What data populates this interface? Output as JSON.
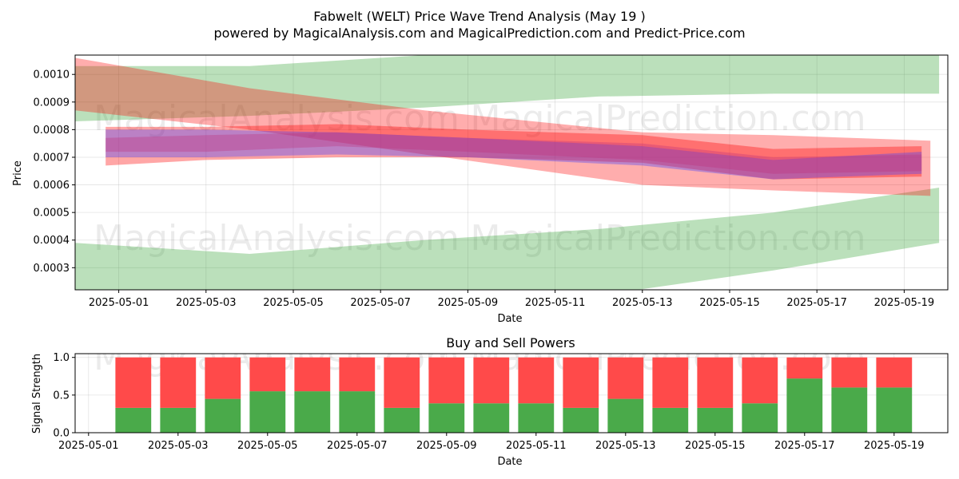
{
  "chart_data": [
    {
      "type": "area",
      "title": "Fabwelt (WELT) Price Wave Trend Analysis (May 19 )",
      "subtitle": "powered by MagicalAnalysis.com and MagicalPrediction.com and Predict-Price.com",
      "xlabel": "Date",
      "ylabel": "Price",
      "xlim": [
        "2025-04-30",
        "2025-05-20"
      ],
      "ylim": [
        0.00022,
        0.00107
      ],
      "x_ticks": [
        "2025-05-01",
        "2025-05-03",
        "2025-05-05",
        "2025-05-07",
        "2025-05-09",
        "2025-05-11",
        "2025-05-13",
        "2025-05-15",
        "2025-05-17",
        "2025-05-19"
      ],
      "y_ticks": [
        "0.0003",
        "0.0004",
        "0.0005",
        "0.0006",
        "0.0007",
        "0.0008",
        "0.0009",
        "0.0010"
      ],
      "grid": true,
      "bands": [
        {
          "color": "#2ca02c",
          "x": [
            "2025-04-30",
            "2025-05-04",
            "2025-05-08",
            "2025-05-12",
            "2025-05-16",
            "2025-05-19.8"
          ],
          "upper": [
            0.00103,
            0.00103,
            0.00107,
            0.00107,
            0.00107,
            0.00107
          ],
          "lower": [
            0.00083,
            0.00085,
            0.00088,
            0.00092,
            0.00093,
            0.00093
          ]
        },
        {
          "color": "#2ca02c",
          "x": [
            "2025-04-30",
            "2025-05-04",
            "2025-05-08",
            "2025-05-12",
            "2025-05-16",
            "2025-05-19.8"
          ],
          "upper": [
            0.00039,
            0.00035,
            0.0004,
            0.00044,
            0.0005,
            0.00059
          ],
          "lower": [
            0.00022,
            0.00017,
            0.00017,
            0.0002,
            0.00029,
            0.00039
          ]
        },
        {
          "color": "#ff0000",
          "x": [
            "2025-04-30",
            "2025-05-04",
            "2025-05-08",
            "2025-05-13",
            "2025-05-16",
            "2025-05-19.6"
          ],
          "upper": [
            0.00106,
            0.00095,
            0.00087,
            0.00079,
            0.00078,
            0.00076
          ],
          "lower": [
            0.00087,
            0.0008,
            0.00071,
            0.0006,
            0.00058,
            0.00056
          ]
        },
        {
          "color": "#ff0000",
          "x": [
            "2025-04-30.7",
            "2025-05-03",
            "2025-05-06",
            "2025-05-09",
            "2025-05-13",
            "2025-05-16",
            "2025-05-19.4"
          ],
          "upper": [
            0.00081,
            0.00081,
            0.00082,
            0.0008,
            0.00078,
            0.00073,
            0.00074
          ],
          "lower": [
            0.00067,
            0.00069,
            0.0007,
            0.0007,
            0.00068,
            0.00062,
            0.00063
          ]
        },
        {
          "color": "#3b3bff",
          "x": [
            "2025-04-30.7",
            "2025-05-03",
            "2025-05-06",
            "2025-05-09",
            "2025-05-13",
            "2025-05-16",
            "2025-05-19.4"
          ],
          "upper": [
            0.0008,
            0.0008,
            0.00079,
            0.00077,
            0.00074,
            0.00069,
            0.00072
          ],
          "lower": [
            0.0007,
            0.0007,
            0.00071,
            0.0007,
            0.00067,
            0.00062,
            0.00064
          ]
        },
        {
          "color": "#c0307a",
          "x": [
            "2025-04-30.7",
            "2025-05-03",
            "2025-05-06",
            "2025-05-09",
            "2025-05-13",
            "2025-05-16",
            "2025-05-19.4"
          ],
          "upper": [
            0.00077,
            0.00078,
            0.00079,
            0.00077,
            0.00075,
            0.0007,
            0.00071
          ],
          "lower": [
            0.00072,
            0.00072,
            0.00074,
            0.00072,
            0.00069,
            0.00064,
            0.00065
          ]
        }
      ]
    },
    {
      "type": "bar",
      "title": "Buy and Sell Powers",
      "xlabel": "Date",
      "ylabel": "Signal Strength",
      "xlim": [
        "2025-04-30.7",
        "2025-05-20.2"
      ],
      "ylim": [
        0,
        1.05
      ],
      "x_ticks": [
        "2025-05-01",
        "2025-05-03",
        "2025-05-05",
        "2025-05-07",
        "2025-05-09",
        "2025-05-11",
        "2025-05-13",
        "2025-05-15",
        "2025-05-17",
        "2025-05-19"
      ],
      "y_ticks": [
        "0.0",
        "0.5",
        "1.0"
      ],
      "grid": true,
      "categories": [
        "2025-05-02",
        "2025-05-03",
        "2025-05-04",
        "2025-05-05",
        "2025-05-06",
        "2025-05-07",
        "2025-05-08",
        "2025-05-09",
        "2025-05-10",
        "2025-05-11",
        "2025-05-12",
        "2025-05-13",
        "2025-05-14",
        "2025-05-15",
        "2025-05-16",
        "2025-05-17",
        "2025-05-18",
        "2025-05-19"
      ],
      "series": [
        {
          "color": "#4aaa4a",
          "values": [
            0.33,
            0.33,
            0.45,
            0.55,
            0.55,
            0.55,
            0.33,
            0.39,
            0.39,
            0.39,
            0.33,
            0.45,
            0.33,
            0.33,
            0.39,
            0.72,
            0.6,
            0.6
          ]
        },
        {
          "color": "#ff4a4a",
          "values": [
            0.67,
            0.67,
            0.55,
            0.45,
            0.45,
            0.45,
            0.67,
            0.61,
            0.61,
            0.61,
            0.67,
            0.55,
            0.67,
            0.67,
            0.61,
            0.28,
            0.4,
            0.4
          ]
        }
      ]
    }
  ],
  "watermark": {
    "left": "MagicalAnalysis.com",
    "right": "MagicalPrediction.com"
  }
}
